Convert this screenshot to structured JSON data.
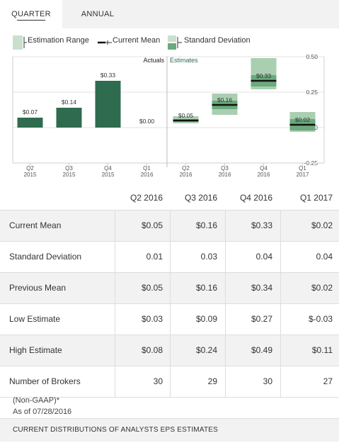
{
  "tabs": [
    {
      "label": "QUARTER",
      "active": true
    },
    {
      "label": "ANNUAL",
      "active": false
    }
  ],
  "legend": {
    "estimation_range": "Estimation Range",
    "current_mean": "Current Mean",
    "standard_deviation": "Standard Deviation"
  },
  "chart_data": {
    "type": "bar",
    "section_labels": {
      "actuals": "Actuals",
      "estimates": "Estimates"
    },
    "categories": [
      "Q2\n2015",
      "Q3\n2015",
      "Q4\n2015",
      "Q1\n2016",
      "Q2\n2016",
      "Q3\n2016",
      "Q4\n2016",
      "Q1\n2017"
    ],
    "actuals": [
      {
        "category": "Q2 2015",
        "value": 0.07,
        "label": "$0.07"
      },
      {
        "category": "Q3 2015",
        "value": 0.14,
        "label": "$0.14"
      },
      {
        "category": "Q4 2015",
        "value": 0.33,
        "label": "$0.33"
      },
      {
        "category": "Q1 2016",
        "value": 0.0,
        "label": "$0.00"
      }
    ],
    "estimates": [
      {
        "category": "Q2 2016",
        "mean": 0.05,
        "label": "$0.05",
        "low": 0.03,
        "high": 0.08,
        "std": 0.01
      },
      {
        "category": "Q3 2016",
        "mean": 0.16,
        "label": "$0.16",
        "low": 0.09,
        "high": 0.24,
        "std": 0.03
      },
      {
        "category": "Q4 2016",
        "mean": 0.33,
        "label": "$0.33",
        "low": 0.27,
        "high": 0.49,
        "std": 0.04
      },
      {
        "category": "Q1 2017",
        "mean": 0.02,
        "label": "$0.02",
        "low": -0.03,
        "high": 0.11,
        "std": 0.04
      }
    ],
    "y_ticks": [
      0.5,
      0.25,
      0.0,
      -0.25
    ],
    "y_tick_labels": [
      "0.50",
      "0.25",
      "0.00",
      "-0.25"
    ],
    "ylim": [
      -0.25,
      0.5
    ],
    "grid": true,
    "colors": {
      "actual": "#2f6b4f",
      "range": "#a9cfb1",
      "std": "#6aaa7c",
      "mean": "#111111"
    }
  },
  "table": {
    "headers": [
      "Q2 2016",
      "Q3 2016",
      "Q4 2016",
      "Q1 2017"
    ],
    "rows": [
      {
        "name": "Current Mean",
        "values": [
          "$0.05",
          "$0.16",
          "$0.33",
          "$0.02"
        ]
      },
      {
        "name": "Standard Deviation",
        "values": [
          "0.01",
          "0.03",
          "0.04",
          "0.04"
        ]
      },
      {
        "name": "Previous Mean",
        "values": [
          "$0.05",
          "$0.16",
          "$0.34",
          "$0.02"
        ]
      },
      {
        "name": "Low Estimate",
        "values": [
          "$0.03",
          "$0.09",
          "$0.27",
          "$-0.03"
        ]
      },
      {
        "name": "High Estimate",
        "values": [
          "$0.08",
          "$0.24",
          "$0.49",
          "$0.11"
        ]
      },
      {
        "name": "Number of Brokers",
        "values": [
          "30",
          "29",
          "30",
          "27"
        ]
      }
    ]
  },
  "footnote": {
    "gaap": "(Non-GAAP)*",
    "asof": "As of 07/28/2016"
  },
  "bottom_bar": "CURRENT DISTRIBUTIONS OF ANALYSTS EPS ESTIMATES"
}
